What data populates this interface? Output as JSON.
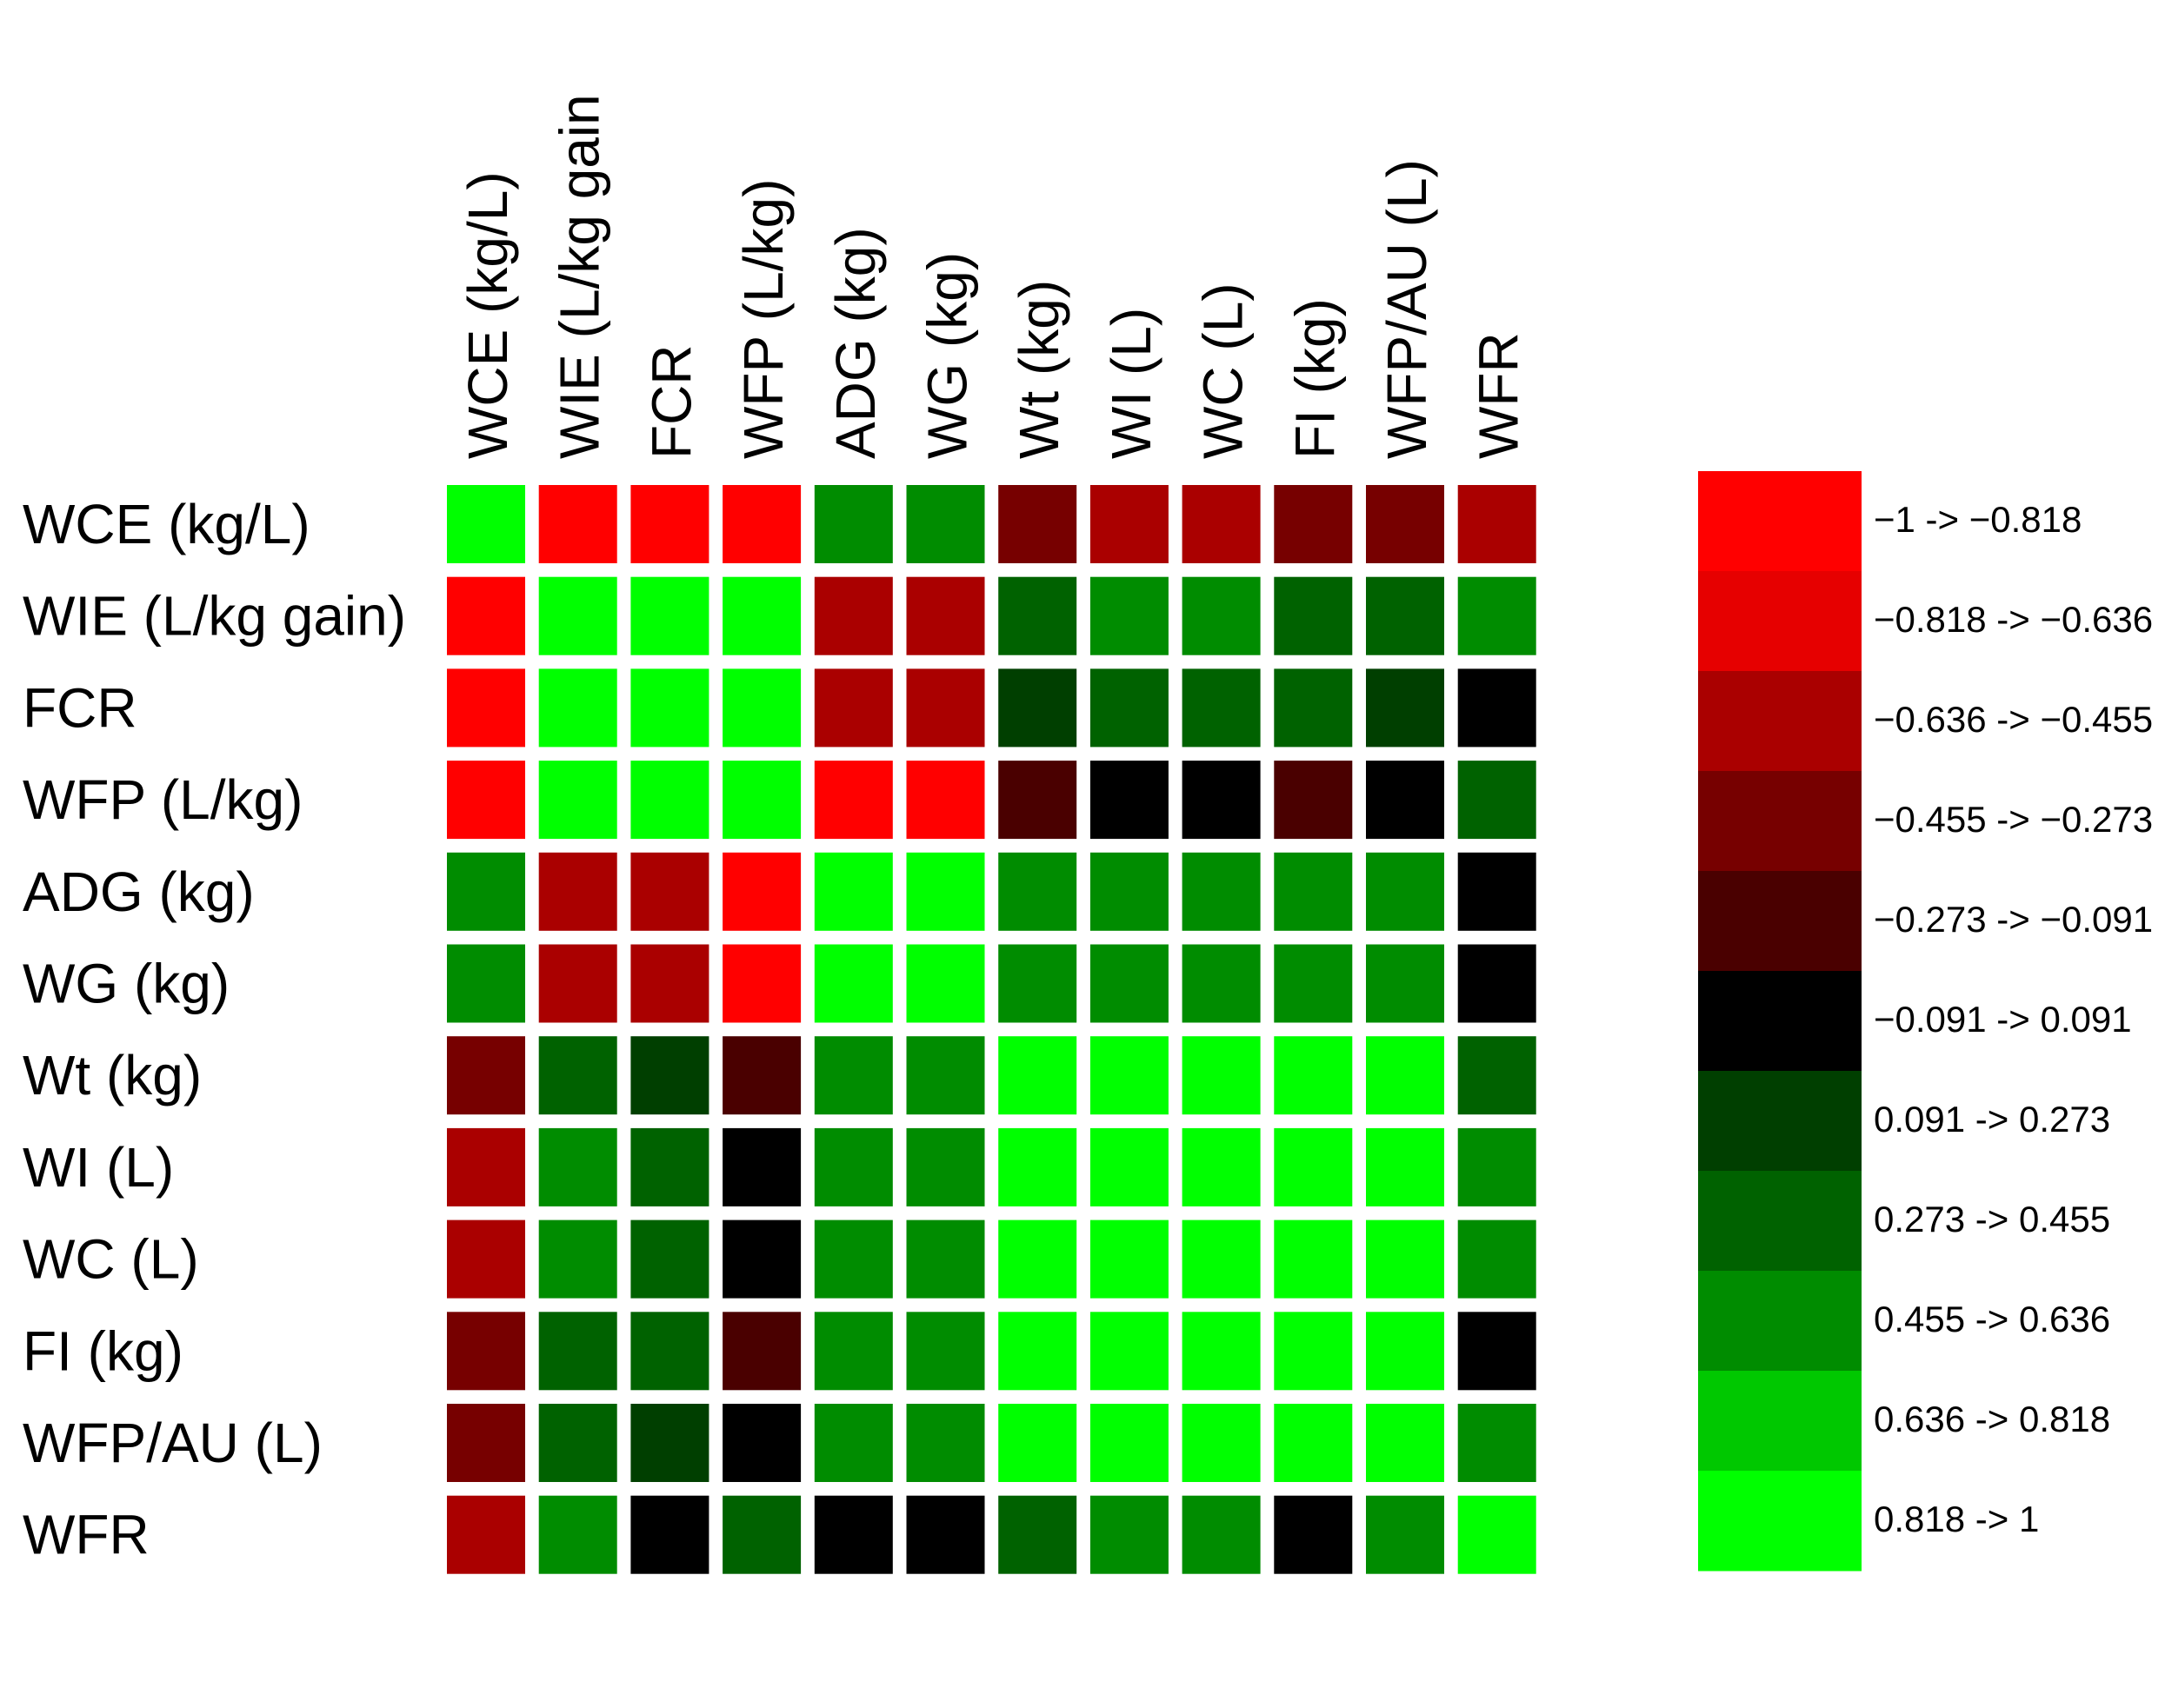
{
  "chart_data": {
    "type": "heatmap",
    "title": "",
    "xlabel": "",
    "ylabel": "",
    "rows": [
      "WCE (kg/L)",
      "WIE (L/kg gain)",
      "FCR",
      "WFP (L/kg)",
      "ADG (kg)",
      "WG (kg)",
      "Wt (kg)",
      "WI (L)",
      "WC (L)",
      "FI (kg)",
      "WFP/AU (L)",
      "WFR"
    ],
    "columns": [
      "WCE (kg/L)",
      "WIE (L/kg gain",
      "FCR",
      "WFP (L/kg)",
      "ADG (kg)",
      "WG (kg)",
      "Wt (kg)",
      "WI (L)",
      "WC (L)",
      "FI (kg)",
      "WFP/AU (L)",
      "WFR"
    ],
    "values": [
      [
        0.9,
        -0.9,
        -0.9,
        -0.9,
        0.5,
        0.5,
        -0.35,
        -0.55,
        -0.55,
        -0.35,
        -0.35,
        -0.55
      ],
      [
        -0.9,
        0.9,
        0.9,
        0.9,
        -0.55,
        -0.55,
        0.35,
        0.5,
        0.5,
        0.35,
        0.35,
        0.5
      ],
      [
        -0.9,
        0.9,
        0.9,
        0.9,
        -0.55,
        -0.55,
        0.2,
        0.35,
        0.35,
        0.35,
        0.2,
        0.0
      ],
      [
        -0.9,
        0.9,
        0.9,
        0.9,
        -0.9,
        -0.9,
        -0.2,
        0.0,
        0.0,
        -0.2,
        0.0,
        0.35
      ],
      [
        0.5,
        -0.55,
        -0.55,
        -0.9,
        0.9,
        0.9,
        0.5,
        0.5,
        0.5,
        0.5,
        0.5,
        0.0
      ],
      [
        0.5,
        -0.55,
        -0.55,
        -0.9,
        0.9,
        0.9,
        0.5,
        0.5,
        0.5,
        0.5,
        0.5,
        0.0
      ],
      [
        -0.35,
        0.35,
        0.2,
        -0.2,
        0.5,
        0.5,
        0.9,
        0.9,
        0.9,
        0.9,
        0.9,
        0.35
      ],
      [
        -0.55,
        0.5,
        0.35,
        0.0,
        0.5,
        0.5,
        0.9,
        0.9,
        0.9,
        0.9,
        0.9,
        0.5
      ],
      [
        -0.55,
        0.5,
        0.35,
        0.0,
        0.5,
        0.5,
        0.9,
        0.9,
        0.9,
        0.9,
        0.9,
        0.5
      ],
      [
        -0.35,
        0.35,
        0.35,
        -0.2,
        0.5,
        0.5,
        0.9,
        0.9,
        0.9,
        0.9,
        0.9,
        0.0
      ],
      [
        -0.35,
        0.35,
        0.2,
        0.0,
        0.5,
        0.5,
        0.9,
        0.9,
        0.9,
        0.9,
        0.9,
        0.5
      ],
      [
        -0.55,
        0.5,
        0.0,
        0.35,
        0.0,
        0.0,
        0.35,
        0.5,
        0.5,
        0.0,
        0.5,
        0.9
      ]
    ],
    "value_range": [
      -1,
      1
    ],
    "legend": {
      "placement": "right",
      "bins": [
        {
          "label": "−1 -> −0.818",
          "color": "#ff0000"
        },
        {
          "label": "−0.818 -> −0.636",
          "color": "#e60000"
        },
        {
          "label": "−0.636 -> −0.455",
          "color": "#aa0000"
        },
        {
          "label": "−0.455 -> −0.273",
          "color": "#770000"
        },
        {
          "label": "−0.273 -> −0.091",
          "color": "#4a0000"
        },
        {
          "label": "−0.091 -> 0.091",
          "color": "#000000"
        },
        {
          "label": "0.091 -> 0.273",
          "color": "#003f00"
        },
        {
          "label": "0.273 -> 0.455",
          "color": "#006200"
        },
        {
          "label": "0.455 -> 0.636",
          "color": "#008c00"
        },
        {
          "label": "0.636 -> 0.818",
          "color": "#00c800"
        },
        {
          "label": "0.818 -> 1",
          "color": "#00ff00"
        }
      ]
    }
  }
}
